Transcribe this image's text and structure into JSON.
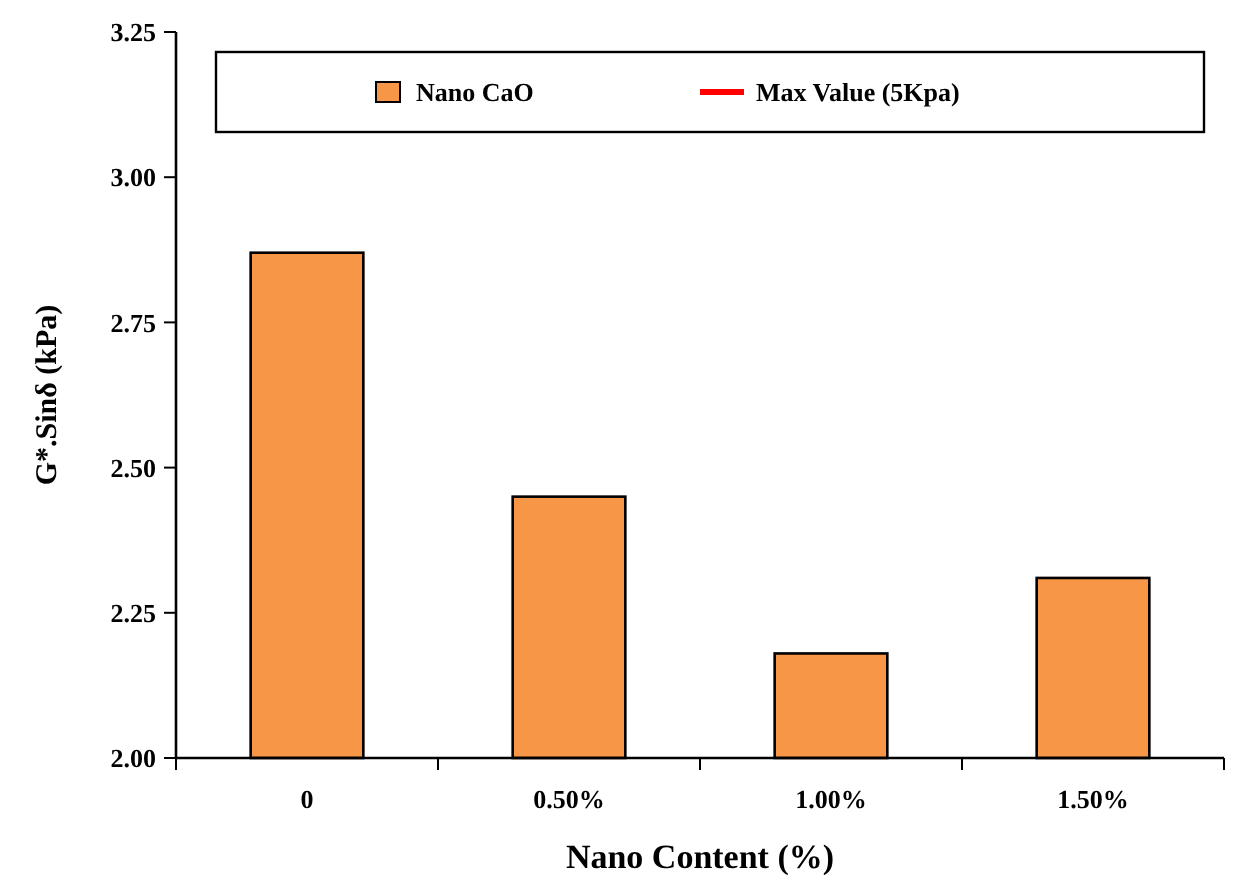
{
  "chart_data": {
    "type": "bar",
    "xlabel": "Nano Content (%)",
    "ylabel": "G*.Sinδ (kPa)",
    "categories": [
      "0",
      "0.50%",
      "1.00%",
      "1.50%"
    ],
    "series": [
      {
        "name": "Nano CaO",
        "color": "#f79646",
        "values": [
          2.87,
          2.45,
          2.18,
          2.31
        ]
      },
      {
        "name": "Max Value (5Kpa)",
        "type": "line",
        "color": "#ff0000",
        "values": [
          null,
          null,
          null,
          null
        ]
      }
    ],
    "ylim": [
      2,
      3.25
    ],
    "yticks": [
      {
        "value": 2,
        "label": "2.00"
      },
      {
        "value": 2.25,
        "label": "2.25"
      },
      {
        "value": 2.5,
        "label": "2.50"
      },
      {
        "value": 2.75,
        "label": "2.75"
      },
      {
        "value": 3,
        "label": "3.00"
      },
      {
        "value": 3.25,
        "label": "3.25"
      }
    ],
    "legend": "top",
    "grid": false
  }
}
